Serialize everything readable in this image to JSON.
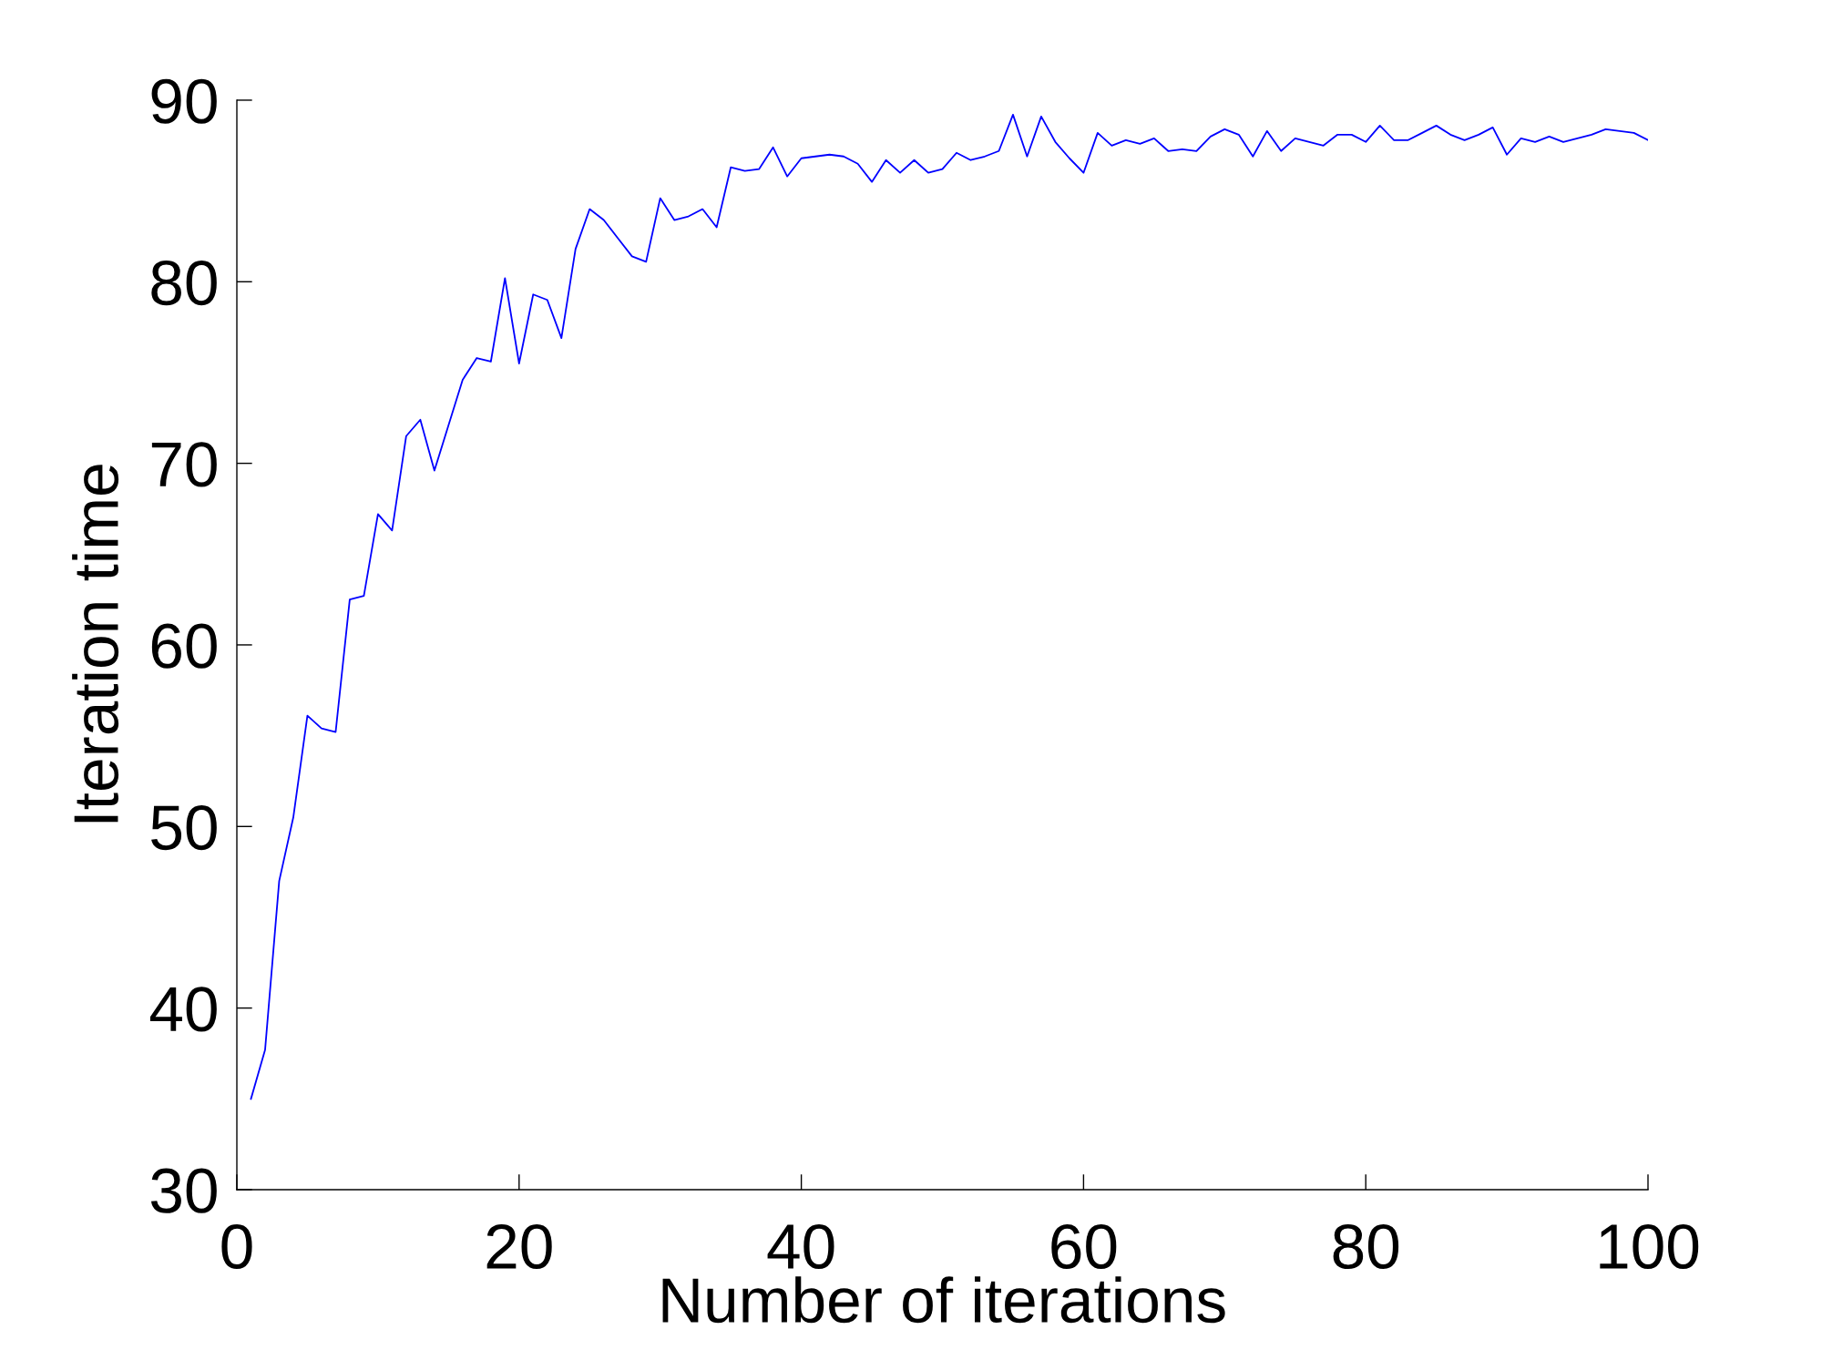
{
  "chart_data": {
    "type": "line",
    "xlabel": "Number of iterations",
    "ylabel": "Iteration time",
    "x": [
      1,
      2,
      3,
      4,
      5,
      6,
      7,
      8,
      9,
      10,
      11,
      12,
      13,
      14,
      15,
      16,
      17,
      18,
      19,
      20,
      21,
      22,
      23,
      24,
      25,
      26,
      27,
      28,
      29,
      30,
      31,
      32,
      33,
      34,
      35,
      36,
      37,
      38,
      39,
      40,
      41,
      42,
      43,
      44,
      45,
      46,
      47,
      48,
      49,
      50,
      51,
      52,
      53,
      54,
      55,
      56,
      57,
      58,
      59,
      60,
      61,
      62,
      63,
      64,
      65,
      66,
      67,
      68,
      69,
      70,
      71,
      72,
      73,
      74,
      75,
      76,
      77,
      78,
      79,
      80,
      81,
      82,
      83,
      84,
      85,
      86,
      87,
      88,
      89,
      90,
      91,
      92,
      93,
      94,
      95,
      96,
      97,
      98,
      99,
      100
    ],
    "series": [
      {
        "color": "#0000ff",
        "values": [
          35.0,
          37.7,
          47.0,
          50.5,
          56.1,
          55.4,
          55.2,
          62.5,
          62.7,
          67.2,
          66.3,
          71.5,
          72.4,
          69.6,
          72.1,
          74.6,
          75.8,
          75.6,
          80.2,
          75.5,
          79.3,
          79.0,
          76.9,
          81.8,
          84.0,
          83.4,
          82.4,
          81.4,
          81.1,
          84.6,
          83.4,
          83.6,
          84.0,
          83.0,
          86.3,
          86.1,
          86.2,
          87.4,
          85.8,
          86.8,
          86.9,
          87.0,
          86.9,
          86.5,
          85.5,
          86.7,
          86.0,
          86.7,
          86.0,
          86.2,
          87.1,
          86.7,
          86.9,
          87.2,
          89.2,
          86.9,
          89.1,
          87.7,
          86.8,
          86.0,
          88.2,
          87.5,
          87.8,
          87.6,
          87.9,
          87.2,
          87.3,
          87.2,
          88.0,
          88.4,
          88.1,
          86.9,
          88.3,
          87.2,
          87.9,
          87.7,
          87.5,
          88.1,
          88.1,
          87.7,
          88.6,
          87.8,
          87.8,
          88.2,
          88.6,
          88.1,
          87.8,
          88.1,
          88.5,
          87.0,
          87.9,
          87.7,
          88.0,
          87.7,
          87.9,
          88.1,
          88.4,
          88.3,
          88.2,
          87.8
        ]
      }
    ],
    "xlim": [
      0,
      100
    ],
    "xticks": [
      0,
      20,
      40,
      60,
      80,
      100
    ],
    "ylim": [
      30,
      90
    ],
    "yticks": [
      30,
      40,
      50,
      60,
      70,
      80,
      90
    ],
    "grid": false,
    "marker": "none",
    "line_style": "solid"
  }
}
